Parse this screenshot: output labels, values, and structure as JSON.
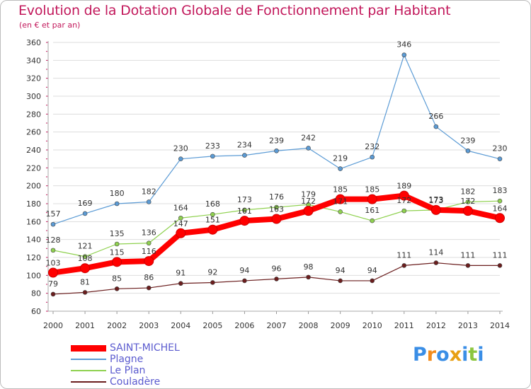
{
  "chart_data": {
    "type": "line",
    "title": "Evolution de la Dotation Globale de Fonctionnement par Habitant",
    "subtitle": "(en € et par an)",
    "x": [
      "2000",
      "2001",
      "2002",
      "2003",
      "2004",
      "2005",
      "2006",
      "2007",
      "2008",
      "2009",
      "2010",
      "2011",
      "2012",
      "2013",
      "2014"
    ],
    "ylim": [
      60,
      360
    ],
    "yticks": [
      60,
      80,
      100,
      120,
      140,
      160,
      180,
      200,
      220,
      240,
      260,
      280,
      300,
      320,
      340,
      360
    ],
    "grid": "horizontal",
    "legend_position": "bottom-left",
    "series": [
      {
        "name": "SAINT-MICHEL",
        "color": "#ff0000",
        "values": [
          103,
          108,
          115,
          116,
          147,
          151,
          161,
          163,
          172,
          185,
          185,
          189,
          173,
          172,
          164
        ]
      },
      {
        "name": "Plagne",
        "color": "#5b9bd5",
        "values": [
          157,
          169,
          180,
          182,
          230,
          233,
          234,
          239,
          242,
          219,
          232,
          346,
          266,
          239,
          230
        ]
      },
      {
        "name": "Le Plan",
        "color": "#8fd14f",
        "values": [
          128,
          121,
          135,
          136,
          164,
          168,
          173,
          176,
          179,
          171,
          161,
          172,
          173,
          182,
          183
        ]
      },
      {
        "name": "Couladère",
        "color": "#6b1e1e",
        "values": [
          79,
          81,
          85,
          86,
          91,
          92,
          94,
          96,
          98,
          94,
          94,
          111,
          114,
          111,
          111
        ]
      }
    ]
  },
  "logo": {
    "letters": [
      "P",
      "r",
      "o",
      "x",
      "i",
      "t",
      "i"
    ],
    "colors": [
      "#3a8ee6",
      "#f28c1e",
      "#3a8ee6",
      "#e8a013",
      "#3a8ee6",
      "#8cc63f",
      "#3a8ee6"
    ]
  }
}
